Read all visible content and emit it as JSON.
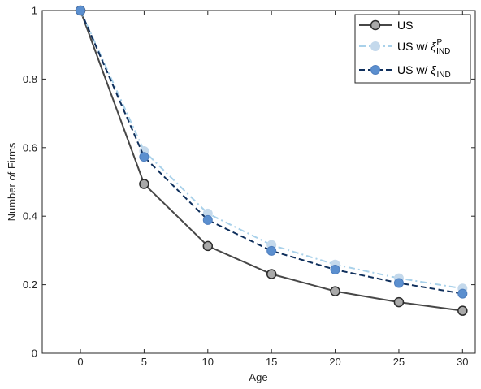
{
  "chart_data": {
    "type": "line",
    "xlabel": "Age",
    "ylabel": "Number of Firms",
    "xlim": [
      -3,
      31
    ],
    "ylim": [
      0,
      1
    ],
    "xticks": [
      0,
      5,
      10,
      15,
      20,
      25,
      30
    ],
    "yticks": [
      0,
      0.2,
      0.4,
      0.6,
      0.8,
      1
    ],
    "ytick_labels": [
      "0",
      "0.2",
      "0.4",
      "0.6",
      "0.8",
      "1"
    ],
    "grid": false,
    "legend_position": "top-right",
    "x": [
      0,
      5,
      10,
      15,
      20,
      25,
      30
    ],
    "series": [
      {
        "name": "US",
        "values": [
          1.0,
          0.494,
          0.313,
          0.231,
          0.181,
          0.149,
          0.124
        ],
        "color": "#474747",
        "marker_fill": "#a9a9a9",
        "line_style": "solid"
      },
      {
        "name": "US w/ ξ^P_IND",
        "name_base": "US w/ ",
        "name_symbol": "ξ",
        "name_sup": "P",
        "name_sub": "IND",
        "values": [
          1.0,
          0.59,
          0.408,
          0.316,
          0.259,
          0.219,
          0.189
        ],
        "color": "#a9d1ea",
        "marker_fill": "#c4d9ec",
        "line_style": "dash-dot"
      },
      {
        "name": "US w/ ξ_IND",
        "name_base": "US w/ ",
        "name_symbol": "ξ",
        "name_sub": "IND",
        "values": [
          1.0,
          0.573,
          0.389,
          0.299,
          0.244,
          0.205,
          0.174
        ],
        "color": "#0f2f5c",
        "marker_fill": "#5b8fcf",
        "line_style": "dashed"
      }
    ]
  }
}
